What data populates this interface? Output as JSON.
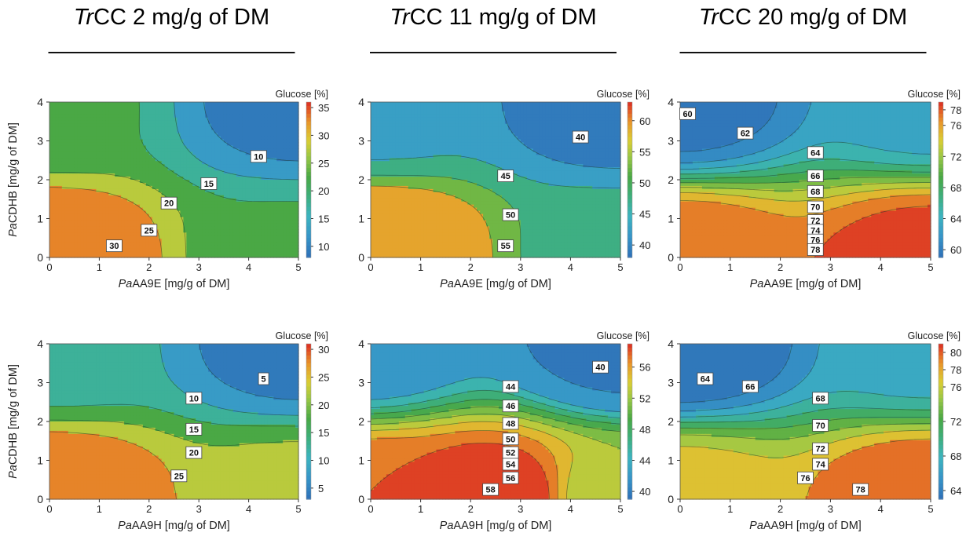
{
  "column_titles": [
    {
      "italic": "Tr",
      "rest": "CC 2 mg/g of DM"
    },
    {
      "italic": "Tr",
      "rest": "CC 11 mg/g of DM"
    },
    {
      "italic": "Tr",
      "rest": "CC 20 mg/g of DM"
    }
  ],
  "chart_data": [
    {
      "type": "heatmap",
      "subtype": "contour",
      "xlabel": {
        "italic": "Pa",
        "rest": "AA9E [mg/g of DM]"
      },
      "ylabel": {
        "italic": "Pa",
        "rest": "CDHB [mg/g of DM]"
      },
      "xlim": [
        0,
        5
      ],
      "ylim": [
        0,
        4
      ],
      "xticks": [
        "0",
        "1",
        "2",
        "3",
        "4",
        "5"
      ],
      "yticks": [
        "0",
        "1",
        "2",
        "3",
        "4"
      ],
      "colorbar": {
        "title": "Glucose [%]",
        "ticks": [
          35,
          30,
          25,
          20,
          15,
          10
        ],
        "range": [
          8,
          36
        ]
      },
      "contour_levels": [
        10,
        15,
        20,
        25,
        30
      ],
      "contour_labels": [
        "10",
        "15",
        "20",
        "25",
        "30"
      ],
      "points": [
        {
          "x": 0,
          "y": 0,
          "z": 35
        },
        {
          "x": 5,
          "y": 0,
          "z": 21
        },
        {
          "x": 0,
          "y": 4,
          "z": 21
        },
        {
          "x": 5,
          "y": 4,
          "z": 8
        }
      ]
    },
    {
      "type": "heatmap",
      "subtype": "contour",
      "xlabel": {
        "italic": "Pa",
        "rest": "AA9E [mg/g of DM]"
      },
      "ylabel": {
        "italic": "",
        "rest": ""
      },
      "xlim": [
        0,
        5
      ],
      "ylim": [
        0,
        4
      ],
      "xticks": [
        "0",
        "1",
        "2",
        "3",
        "4",
        "5"
      ],
      "yticks": [
        "0",
        "1",
        "2",
        "3",
        "4"
      ],
      "colorbar": {
        "title": "Glucose [%]",
        "ticks": [
          60,
          55,
          50,
          45,
          40
        ],
        "range": [
          38,
          63
        ]
      },
      "contour_levels": [
        40,
        45,
        50,
        55
      ],
      "contour_labels": [
        "40",
        "45",
        "50",
        "55"
      ],
      "points": [
        {
          "x": 0,
          "y": 0,
          "z": 62
        },
        {
          "x": 5,
          "y": 0,
          "z": 48
        },
        {
          "x": 0,
          "y": 4,
          "z": 43
        },
        {
          "x": 5,
          "y": 4,
          "z": 37
        }
      ]
    },
    {
      "type": "heatmap",
      "subtype": "contour",
      "xlabel": {
        "italic": "Pa",
        "rest": "AA9E [mg/g of DM]"
      },
      "ylabel": {
        "italic": "",
        "rest": ""
      },
      "xlim": [
        0,
        5
      ],
      "ylim": [
        0,
        4
      ],
      "xticks": [
        "0",
        "1",
        "2",
        "3",
        "4",
        "5"
      ],
      "yticks": [
        "0",
        "1",
        "2",
        "3",
        "4"
      ],
      "colorbar": {
        "title": "Glucose [%]",
        "ticks": [
          78,
          76,
          72,
          68,
          64,
          60
        ],
        "range": [
          59,
          79
        ]
      },
      "contour_levels": [
        60,
        62,
        64,
        66,
        68,
        70,
        72,
        74,
        76,
        78
      ],
      "contour_labels": [
        "60",
        "62",
        "64",
        "66",
        "68",
        "70",
        "72",
        "74",
        "76",
        "78"
      ],
      "points": [
        {
          "x": 0,
          "y": 0,
          "z": 78
        },
        {
          "x": 5,
          "y": 0,
          "z": 79
        },
        {
          "x": 0,
          "y": 4,
          "z": 59
        },
        {
          "x": 5,
          "y": 4,
          "z": 63
        }
      ]
    },
    {
      "type": "heatmap",
      "subtype": "contour",
      "xlabel": {
        "italic": "Pa",
        "rest": "AA9H [mg/g of DM]"
      },
      "ylabel": {
        "italic": "Pa",
        "rest": "CDHB [mg/g of DM]"
      },
      "xlim": [
        0,
        5
      ],
      "ylim": [
        0,
        4
      ],
      "xticks": [
        "0",
        "1",
        "2",
        "3",
        "4",
        "5"
      ],
      "yticks": [
        "0",
        "1",
        "2",
        "3",
        "4"
      ],
      "colorbar": {
        "title": "Glucose [%]",
        "ticks": [
          30,
          25,
          20,
          15,
          10,
          5
        ],
        "range": [
          3,
          31
        ]
      },
      "contour_levels": [
        5,
        10,
        15,
        20,
        25
      ],
      "contour_labels": [
        "5",
        "10",
        "15",
        "20",
        "25"
      ],
      "points": [
        {
          "x": 0,
          "y": 0,
          "z": 30
        },
        {
          "x": 5,
          "y": 0,
          "z": 22
        },
        {
          "x": 0,
          "y": 4,
          "z": 12
        },
        {
          "x": 5,
          "y": 4,
          "z": 3
        }
      ]
    },
    {
      "type": "heatmap",
      "subtype": "contour",
      "xlabel": {
        "italic": "Pa",
        "rest": "AA9H [mg/g of DM]"
      },
      "ylabel": {
        "italic": "",
        "rest": ""
      },
      "xlim": [
        0,
        5
      ],
      "ylim": [
        0,
        4
      ],
      "xticks": [
        "0",
        "1",
        "2",
        "3",
        "4",
        "5"
      ],
      "yticks": [
        "0",
        "1",
        "2",
        "3",
        "4"
      ],
      "colorbar": {
        "title": "Glucose [%]",
        "ticks": [
          56,
          52,
          48,
          44,
          40
        ],
        "range": [
          39,
          59
        ]
      },
      "contour_levels": [
        40,
        44,
        46,
        48,
        50,
        52,
        54,
        56,
        58
      ],
      "contour_labels": [
        "40",
        "44",
        "46",
        "48",
        "50",
        "52",
        "54",
        "56",
        "58"
      ],
      "points": [
        {
          "x": 0,
          "y": 0,
          "z": 58
        },
        {
          "x": 2.5,
          "y": 0,
          "z": 60
        },
        {
          "x": 5,
          "y": 0,
          "z": 52
        },
        {
          "x": 0,
          "y": 4,
          "z": 42
        },
        {
          "x": 5,
          "y": 4,
          "z": 39
        }
      ]
    },
    {
      "type": "heatmap",
      "subtype": "contour",
      "xlabel": {
        "italic": "Pa",
        "rest": "AA9H [mg/g of DM]"
      },
      "ylabel": {
        "italic": "",
        "rest": ""
      },
      "xlim": [
        0,
        5
      ],
      "ylim": [
        0,
        4
      ],
      "xticks": [
        "0",
        "1",
        "2",
        "3",
        "4",
        "5"
      ],
      "yticks": [
        "0",
        "1",
        "2",
        "3",
        "4"
      ],
      "colorbar": {
        "title": "Glucose [%]",
        "ticks": [
          80,
          78,
          76,
          72,
          68,
          64
        ],
        "range": [
          63,
          81
        ]
      },
      "contour_levels": [
        64,
        66,
        68,
        70,
        72,
        74,
        76,
        78
      ],
      "contour_labels": [
        "64",
        "66",
        "68",
        "70",
        "72",
        "74",
        "76",
        "78"
      ],
      "points": [
        {
          "x": 0,
          "y": 0,
          "z": 77
        },
        {
          "x": 5,
          "y": 0,
          "z": 80
        },
        {
          "x": 0,
          "y": 4,
          "z": 62
        },
        {
          "x": 5,
          "y": 4,
          "z": 67
        }
      ]
    }
  ]
}
